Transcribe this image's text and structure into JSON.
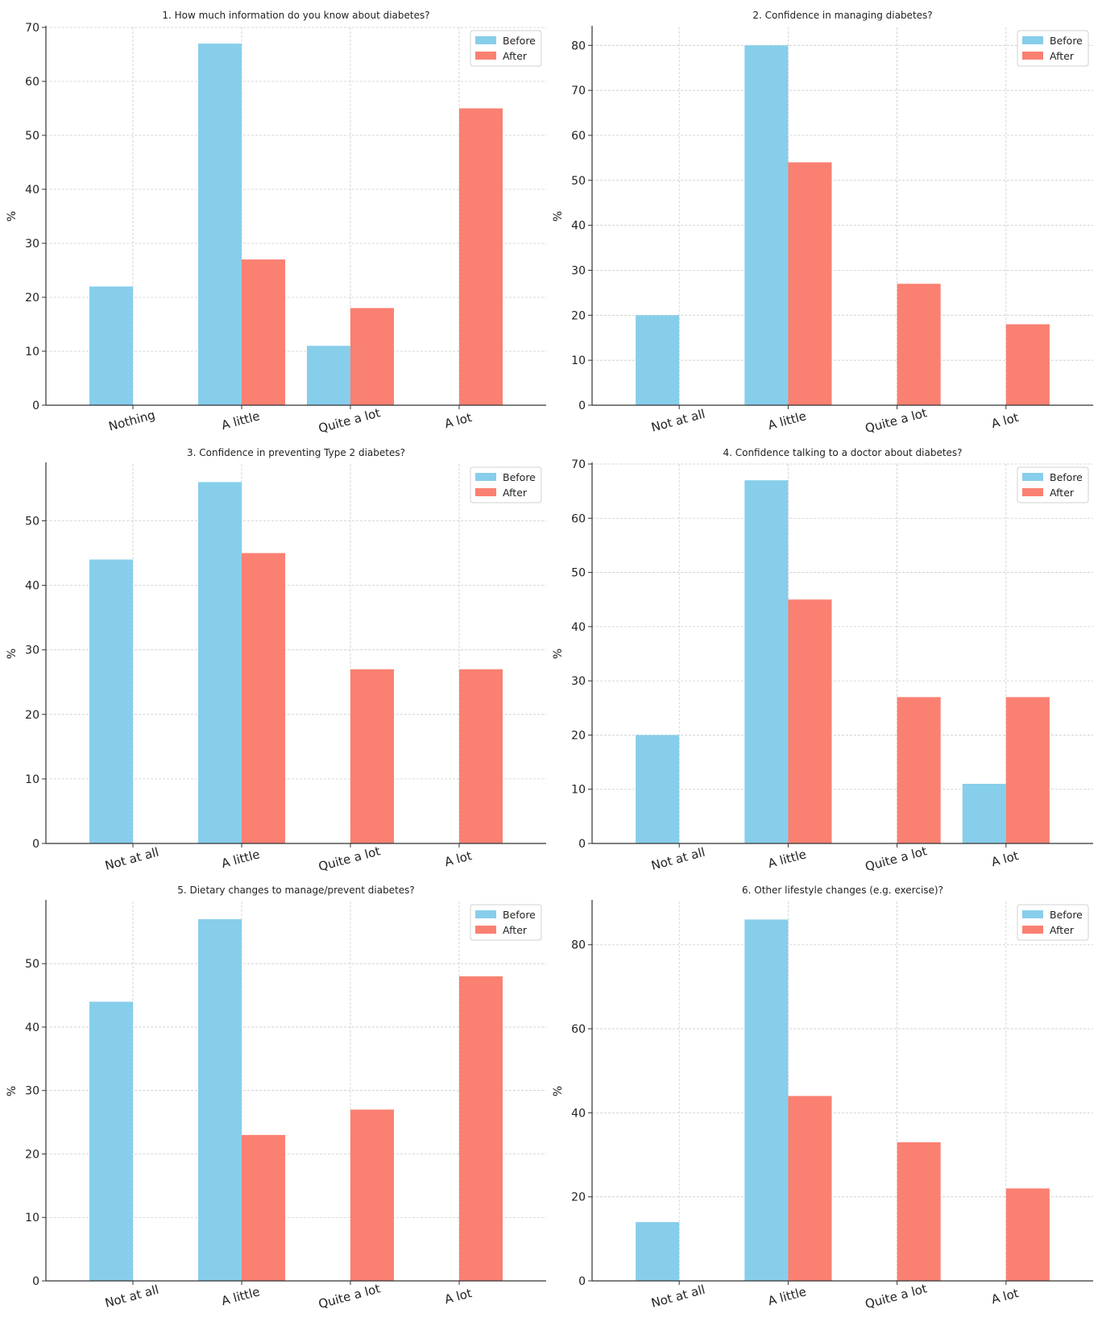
{
  "colors": {
    "before": "#87ceeb",
    "after": "#fa8072",
    "axis": "#333333",
    "grid": "#cccccc"
  },
  "chart_data": [
    {
      "type": "bar",
      "title": "1. How much information do you know about diabetes?",
      "ylabel": "%",
      "categories": [
        "Nothing",
        "A little",
        "Quite a lot",
        "A lot"
      ],
      "series": [
        {
          "name": "Before",
          "values": [
            22,
            67,
            11,
            0
          ]
        },
        {
          "name": "After",
          "values": [
            0,
            27,
            18,
            55
          ]
        }
      ],
      "ylim": [
        0,
        70
      ],
      "yticks": [
        0,
        10,
        20,
        30,
        40,
        50,
        60,
        70
      ],
      "grid": true,
      "legend": "top-right"
    },
    {
      "type": "bar",
      "title": "2. Confidence in managing diabetes?",
      "ylabel": "%",
      "categories": [
        "Not at all",
        "A little",
        "Quite a lot",
        "A lot"
      ],
      "series": [
        {
          "name": "Before",
          "values": [
            20,
            80,
            0,
            0
          ]
        },
        {
          "name": "After",
          "values": [
            0,
            54,
            27,
            18
          ]
        }
      ],
      "ylim": [
        0,
        84
      ],
      "yticks": [
        0,
        10,
        20,
        30,
        40,
        50,
        60,
        70,
        80
      ],
      "grid": true,
      "legend": "top-right"
    },
    {
      "type": "bar",
      "title": "3. Confidence in preventing Type 2 diabetes?",
      "ylabel": "%",
      "categories": [
        "Not at all",
        "A little",
        "Quite a lot",
        "A lot"
      ],
      "series": [
        {
          "name": "Before",
          "values": [
            44,
            56,
            0,
            0
          ]
        },
        {
          "name": "After",
          "values": [
            0,
            45,
            27,
            27
          ]
        }
      ],
      "ylim": [
        0,
        58.8
      ],
      "yticks": [
        0,
        10,
        20,
        30,
        40,
        50
      ],
      "grid": true,
      "legend": "top-right"
    },
    {
      "type": "bar",
      "title": "4. Confidence talking to a doctor about diabetes?",
      "ylabel": "%",
      "categories": [
        "Not at all",
        "A little",
        "Quite a lot",
        "A lot"
      ],
      "series": [
        {
          "name": "Before",
          "values": [
            20,
            67,
            0,
            11
          ]
        },
        {
          "name": "After",
          "values": [
            0,
            45,
            27,
            27
          ]
        }
      ],
      "ylim": [
        0,
        70
      ],
      "yticks": [
        0,
        10,
        20,
        30,
        40,
        50,
        60,
        70
      ],
      "grid": true,
      "legend": "top-right"
    },
    {
      "type": "bar",
      "title": "5. Dietary changes to manage/prevent diabetes?",
      "ylabel": "%",
      "categories": [
        "Not at all",
        "A little",
        "Quite a lot",
        "A lot"
      ],
      "series": [
        {
          "name": "Before",
          "values": [
            44,
            57,
            0,
            0
          ]
        },
        {
          "name": "After",
          "values": [
            0,
            23,
            27,
            48
          ]
        }
      ],
      "ylim": [
        0,
        59.8
      ],
      "yticks": [
        0,
        10,
        20,
        30,
        40,
        50
      ],
      "grid": true,
      "legend": "top-right"
    },
    {
      "type": "bar",
      "title": "6. Other lifestyle changes (e.g. exercise)?",
      "ylabel": "%",
      "categories": [
        "Not at all",
        "A little",
        "Quite a lot",
        "A lot"
      ],
      "series": [
        {
          "name": "Before",
          "values": [
            14,
            86,
            0,
            0
          ]
        },
        {
          "name": "After",
          "values": [
            0,
            44,
            33,
            22
          ]
        }
      ],
      "ylim": [
        0,
        90.3
      ],
      "yticks": [
        0,
        20,
        40,
        60,
        80
      ],
      "grid": true,
      "legend": "top-right"
    }
  ]
}
